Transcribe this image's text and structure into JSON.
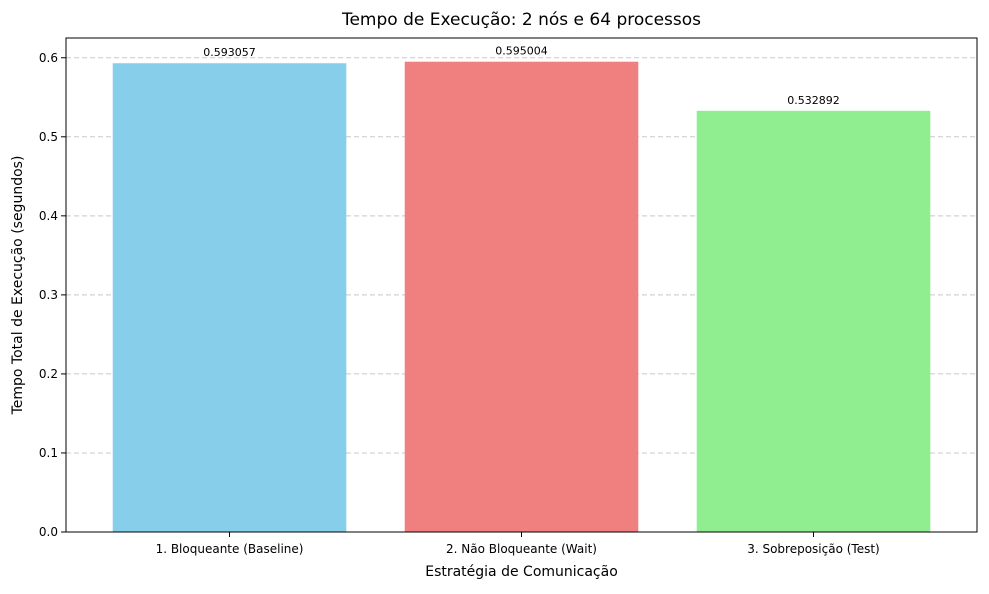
{
  "chart_data": {
    "type": "bar",
    "title": "Tempo de Execução: 2 nós e 64 processos",
    "xlabel": "Estratégia de Comunicação",
    "ylabel": "Tempo Total de Execução (segundos)",
    "categories": [
      "1. Bloqueante (Baseline)",
      "2. Não Bloqueante (Wait)",
      "3. Sobreposição (Test)"
    ],
    "values": [
      0.593057,
      0.595004,
      0.532892
    ],
    "value_labels": [
      "0.593057",
      "0.595004",
      "0.532892"
    ],
    "colors": [
      "#87ceeb",
      "#f08080",
      "#90ee90"
    ],
    "ylim": [
      0,
      0.625
    ],
    "yticks": [
      0.0,
      0.1,
      0.2,
      0.3,
      0.4,
      0.5,
      0.6
    ],
    "ytick_labels": [
      "0.0",
      "0.1",
      "0.2",
      "0.3",
      "0.4",
      "0.5",
      "0.6"
    ],
    "grid": "y-dashed"
  }
}
